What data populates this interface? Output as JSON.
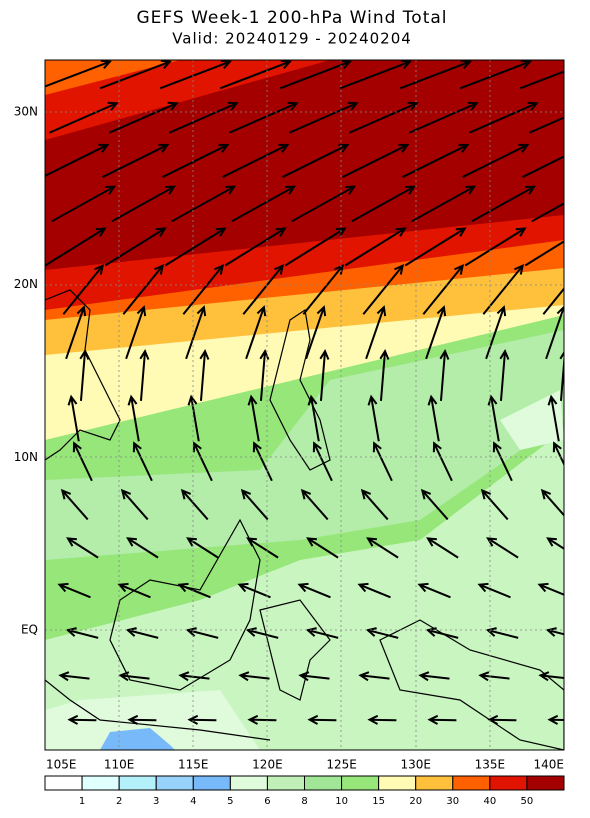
{
  "header": {
    "title": "GEFS Week-1 200-hPa Wind Total",
    "subtitle": "Valid: 20240129 - 20240204"
  },
  "axes": {
    "x_labels": [
      "105E",
      "110E",
      "115E",
      "120E",
      "125E",
      "130E",
      "135E",
      "140E"
    ],
    "y_labels": [
      "30N",
      "20N",
      "10N",
      "EQ"
    ]
  },
  "colorbar": {
    "labels": [
      "1",
      "2",
      "3",
      "4",
      "5",
      "6",
      "8",
      "10",
      "15",
      "20",
      "30",
      "40",
      "50"
    ]
  }
}
